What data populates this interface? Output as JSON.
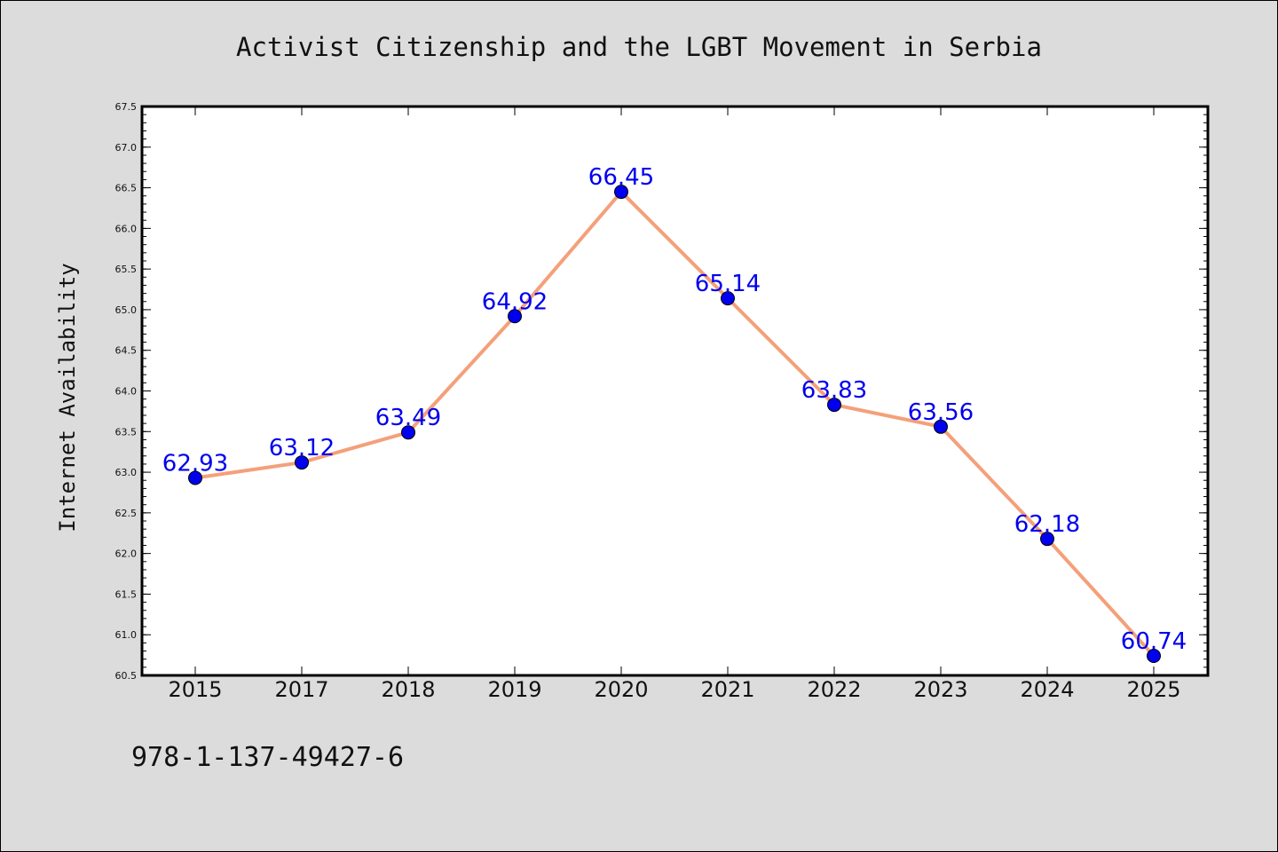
{
  "colors": {
    "background": "#dcdcdc",
    "plot_background": "#ffffff",
    "line": "#f4a07a",
    "marker": "#0000ee",
    "data_label": "#0000ee"
  },
  "isbn": "978-1-137-49427-6",
  "chart_data": {
    "type": "line",
    "title": "Activist Citizenship and the LGBT Movement in Serbia",
    "xlabel": "",
    "ylabel": "Internet Availability",
    "categories": [
      "2015",
      "2017",
      "2018",
      "2019",
      "2020",
      "2021",
      "2022",
      "2023",
      "2024",
      "2025"
    ],
    "series": [
      {
        "values": [
          62.93,
          63.12,
          63.49,
          64.92,
          66.45,
          65.14,
          63.83,
          63.56,
          62.18,
          60.74
        ],
        "labels": [
          "62.93",
          "63.12",
          "63.49",
          "64.92",
          "66.45",
          "65.14",
          "63.83",
          "63.56",
          "62.18",
          "60.74"
        ]
      }
    ],
    "ylim": [
      60.5,
      67.5
    ],
    "yticks": [
      "60.5",
      "61.0",
      "61.5",
      "62.0",
      "62.5",
      "63.0",
      "63.5",
      "64.0",
      "64.5",
      "65.0",
      "65.5",
      "66.0",
      "66.5",
      "67.0",
      "67.5"
    ],
    "grid": false,
    "legend": "none"
  }
}
